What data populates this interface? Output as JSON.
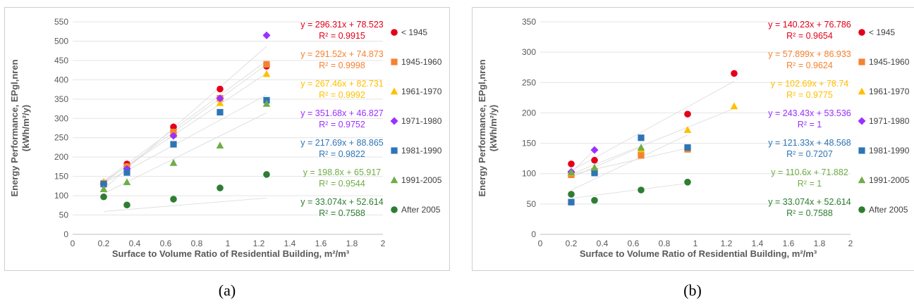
{
  "charts": [
    {
      "id": "a",
      "caption": "(a)",
      "ylabel_line1": "Energy Performance, EPgl,nren",
      "ylabel_line2": "(kWh/m²/y)",
      "xlabel": "Surface to Volume Ratio of Residential Building, m²/m³",
      "xlim": [
        0,
        2
      ],
      "ylim": [
        0,
        550
      ],
      "x_ticks": [
        "0",
        "0.2",
        "0.4",
        "0.6",
        "0.8",
        "1",
        "1.2",
        "1.4",
        "1.6",
        "1.8",
        "2"
      ],
      "y_ticks": [
        "0",
        "50",
        "100",
        "150",
        "200",
        "250",
        "300",
        "350",
        "400",
        "450",
        "500",
        "550"
      ],
      "series": [
        {
          "name": "< 1945",
          "color": "#e3001b",
          "marker": "circle",
          "eq": "y = 296.31x + 78.523",
          "r2": "R² = 0.9915",
          "points": [
            [
              0.2,
              133
            ],
            [
              0.35,
              182
            ],
            [
              0.65,
              278
            ],
            [
              0.95,
              376
            ],
            [
              1.25,
              435
            ]
          ]
        },
        {
          "name": "1945-1960",
          "color": "#f58231",
          "marker": "square",
          "eq": "y = 291.52x + 74.873",
          "r2": "R² = 0.9998",
          "points": [
            [
              0.2,
              132
            ],
            [
              0.35,
              175
            ],
            [
              0.65,
              265
            ],
            [
              0.95,
              352
            ],
            [
              1.25,
              440
            ]
          ]
        },
        {
          "name": "1961-1970",
          "color": "#ffc000",
          "marker": "triangle",
          "eq": "y = 267.46x + 82.731",
          "r2": "R² = 0.9992",
          "points": [
            [
              0.2,
              136
            ],
            [
              0.35,
              175
            ],
            [
              0.65,
              258
            ],
            [
              0.95,
              340
            ],
            [
              1.25,
              415
            ]
          ]
        },
        {
          "name": "1971-1980",
          "color": "#9b30ff",
          "marker": "diamond",
          "eq": "y = 351.68x + 46.827",
          "r2": "R² = 0.9752",
          "points": [
            [
              0.2,
              130
            ],
            [
              0.35,
              170
            ],
            [
              0.65,
              255
            ],
            [
              0.95,
              352
            ],
            [
              1.25,
              515
            ]
          ]
        },
        {
          "name": "1981-1990",
          "color": "#2e75b6",
          "marker": "square",
          "eq": "y = 217.69x + 88.865",
          "r2": "R² = 0.9822",
          "points": [
            [
              0.2,
              130
            ],
            [
              0.35,
              160
            ],
            [
              0.65,
              233
            ],
            [
              0.95,
              316
            ],
            [
              1.25,
              347
            ]
          ]
        },
        {
          "name": "1991-2005",
          "color": "#70ad47",
          "marker": "triangle",
          "eq": "y = 198.8x + 65.917",
          "r2": "R² = 0.9544",
          "points": [
            [
              0.2,
              117
            ],
            [
              0.35,
              135
            ],
            [
              0.65,
              185
            ],
            [
              0.95,
              230
            ],
            [
              1.25,
              338
            ]
          ]
        },
        {
          "name": "After 2005",
          "color": "#2e7d32",
          "marker": "circle",
          "eq": "y = 33.074x + 52.614",
          "r2": "R² = 0.7588",
          "points": [
            [
              0.2,
              97
            ],
            [
              0.35,
              76
            ],
            [
              0.65,
              91
            ],
            [
              0.95,
              120
            ],
            [
              1.25,
              155
            ]
          ]
        }
      ]
    },
    {
      "id": "b",
      "caption": "(b)",
      "ylabel_line1": "Energy Performance, EPgl,nren",
      "ylabel_line2": "(kWh/m²/y)",
      "xlabel": "Surface to Volume Ratio of Residential Building, m²/m³",
      "xlim": [
        0,
        2
      ],
      "ylim": [
        0,
        350
      ],
      "x_ticks": [
        "0",
        "0.2",
        "0.4",
        "0.6",
        "0.8",
        "1",
        "1.2",
        "1.4",
        "1.6",
        "1.8",
        "2"
      ],
      "y_ticks": [
        "0",
        "50",
        "100",
        "150",
        "200",
        "250",
        "300",
        "350"
      ],
      "series": [
        {
          "name": "< 1945",
          "color": "#e3001b",
          "marker": "circle",
          "eq": "y = 140.23x + 76.786",
          "r2": "R² = 0.9654",
          "points": [
            [
              0.2,
              116
            ],
            [
              0.35,
              122
            ],
            [
              0.95,
              198
            ],
            [
              1.25,
              265
            ]
          ]
        },
        {
          "name": "1945-1960",
          "color": "#f58231",
          "marker": "square",
          "eq": "y = 57.899x + 86.933",
          "r2": "R² = 0.9624",
          "points": [
            [
              0.2,
              98
            ],
            [
              0.35,
              104
            ],
            [
              0.65,
              130
            ],
            [
              0.95,
              140
            ]
          ]
        },
        {
          "name": "1961-1970",
          "color": "#ffc000",
          "marker": "triangle",
          "eq": "y = 102.69x + 78.74",
          "r2": "R² = 0.9775",
          "points": [
            [
              0.2,
              101
            ],
            [
              0.35,
              108
            ],
            [
              0.65,
              140
            ],
            [
              0.95,
              172
            ],
            [
              1.25,
              211
            ]
          ]
        },
        {
          "name": "1971-1980",
          "color": "#9b30ff",
          "marker": "diamond",
          "eq": "y = 243.43x + 53.536",
          "r2": "R² = 1",
          "points": [
            [
              0.2,
              103
            ],
            [
              0.35,
              139
            ]
          ]
        },
        {
          "name": "1981-1990",
          "color": "#2e75b6",
          "marker": "square",
          "eq": "y = 121.33x + 48.568",
          "r2": "R² = 0.7207",
          "points": [
            [
              0.2,
              53
            ],
            [
              0.35,
              101
            ],
            [
              0.65,
              159
            ],
            [
              0.95,
              143
            ]
          ]
        },
        {
          "name": "1991-2005",
          "color": "#70ad47",
          "marker": "triangle",
          "eq": "y = 110.6x + 71.882",
          "r2": "R² = 1",
          "points": [
            [
              0.2,
              102
            ],
            [
              0.35,
              110
            ],
            [
              0.65,
              143
            ]
          ]
        },
        {
          "name": "After 2005",
          "color": "#2e7d32",
          "marker": "circle",
          "eq": "y = 33.074x + 52.614",
          "r2": "R² = 0.7588",
          "points": [
            [
              0.2,
              66
            ],
            [
              0.35,
              56
            ],
            [
              0.65,
              73
            ],
            [
              0.95,
              86
            ]
          ]
        }
      ]
    }
  ]
}
